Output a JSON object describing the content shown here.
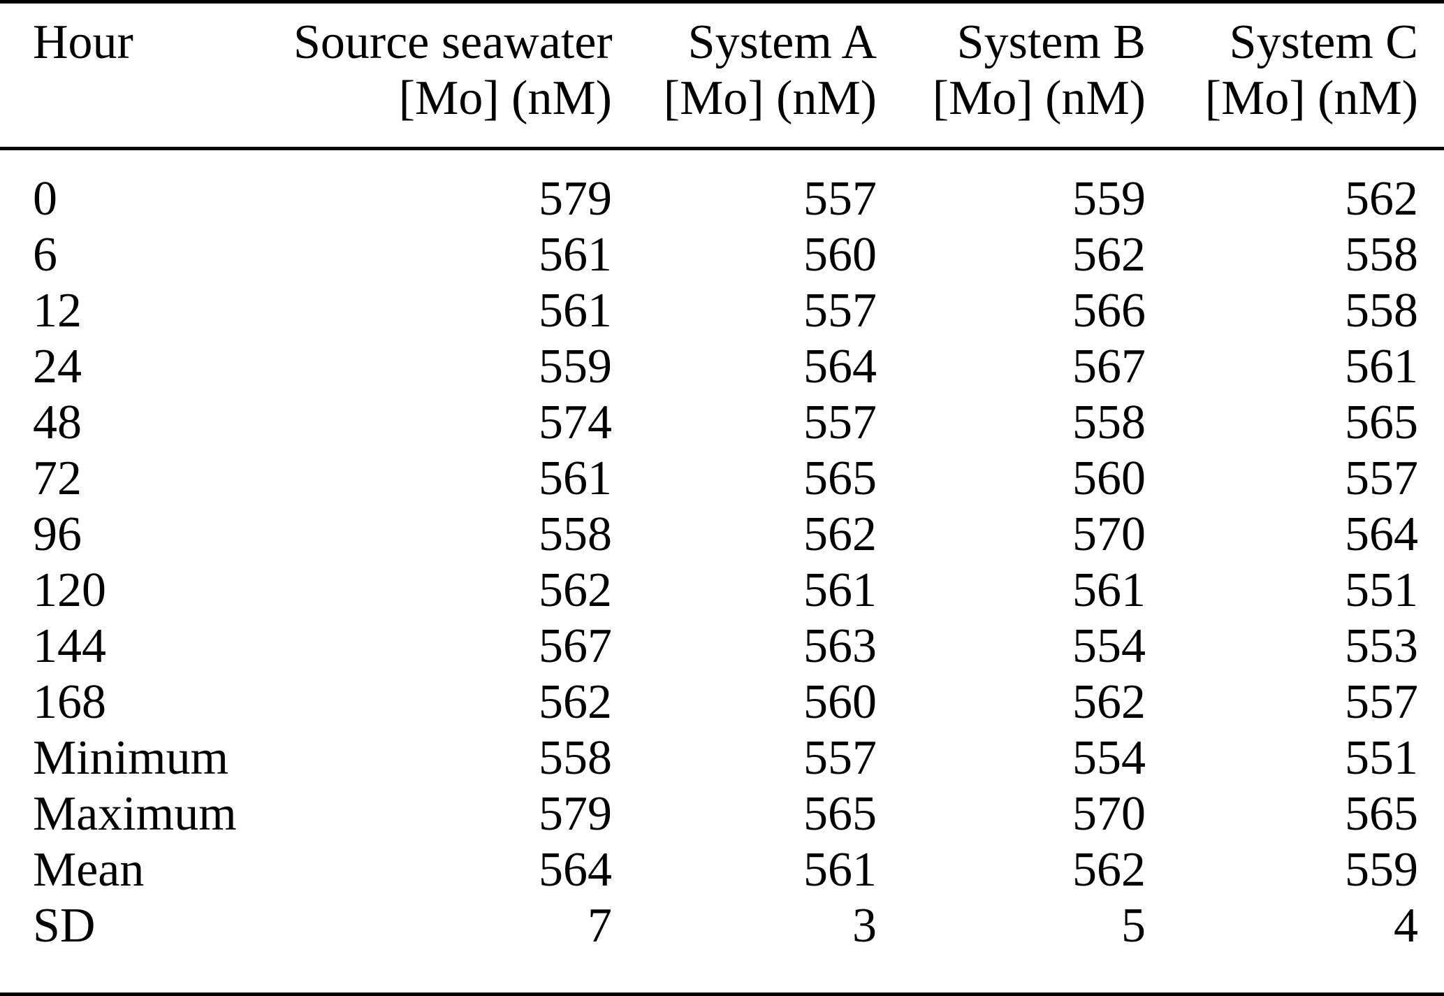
{
  "table": {
    "columns": [
      {
        "label_line1": "Hour",
        "label_line2": ""
      },
      {
        "label_line1": "Source seawater",
        "label_line2": "[Mo] (nM)"
      },
      {
        "label_line1": "System A",
        "label_line2": "[Mo] (nM)"
      },
      {
        "label_line1": "System B",
        "label_line2": "[Mo] (nM)"
      },
      {
        "label_line1": "System C",
        "label_line2": "[Mo] (nM)"
      }
    ],
    "rows": [
      [
        "0",
        "579",
        "557",
        "559",
        "562"
      ],
      [
        "6",
        "561",
        "560",
        "562",
        "558"
      ],
      [
        "12",
        "561",
        "557",
        "566",
        "558"
      ],
      [
        "24",
        "559",
        "564",
        "567",
        "561"
      ],
      [
        "48",
        "574",
        "557",
        "558",
        "565"
      ],
      [
        "72",
        "561",
        "565",
        "560",
        "557"
      ],
      [
        "96",
        "558",
        "562",
        "570",
        "564"
      ],
      [
        "120",
        "562",
        "561",
        "561",
        "551"
      ],
      [
        "144",
        "567",
        "563",
        "554",
        "553"
      ],
      [
        "168",
        "562",
        "560",
        "562",
        "557"
      ],
      [
        "Minimum",
        "558",
        "557",
        "554",
        "551"
      ],
      [
        "Maximum",
        "579",
        "565",
        "570",
        "565"
      ],
      [
        "Mean",
        "564",
        "561",
        "562",
        "559"
      ],
      [
        "SD",
        "7",
        "3",
        "5",
        "4"
      ]
    ],
    "text_color": "#000000",
    "rule_color": "#000000",
    "background_color": "#ffffff"
  },
  "chart_data": {
    "type": "table",
    "title": "",
    "columns": [
      "Hour",
      "Source seawater [Mo] (nM)",
      "System A [Mo] (nM)",
      "System B [Mo] (nM)",
      "System C [Mo] (nM)"
    ],
    "hours": [
      0,
      6,
      12,
      24,
      48,
      72,
      96,
      120,
      144,
      168
    ],
    "series": [
      {
        "name": "Source seawater [Mo] (nM)",
        "values": [
          579,
          561,
          561,
          559,
          574,
          561,
          558,
          562,
          567,
          562
        ],
        "minimum": 558,
        "maximum": 579,
        "mean": 564,
        "sd": 7
      },
      {
        "name": "System A [Mo] (nM)",
        "values": [
          557,
          560,
          557,
          564,
          557,
          565,
          562,
          561,
          563,
          560
        ],
        "minimum": 557,
        "maximum": 565,
        "mean": 561,
        "sd": 3
      },
      {
        "name": "System B [Mo] (nM)",
        "values": [
          559,
          562,
          566,
          567,
          558,
          560,
          570,
          561,
          554,
          562
        ],
        "minimum": 554,
        "maximum": 570,
        "mean": 562,
        "sd": 5
      },
      {
        "name": "System C [Mo] (nM)",
        "values": [
          562,
          558,
          558,
          561,
          565,
          557,
          564,
          551,
          553,
          557
        ],
        "minimum": 551,
        "maximum": 565,
        "mean": 559,
        "sd": 4
      }
    ]
  }
}
